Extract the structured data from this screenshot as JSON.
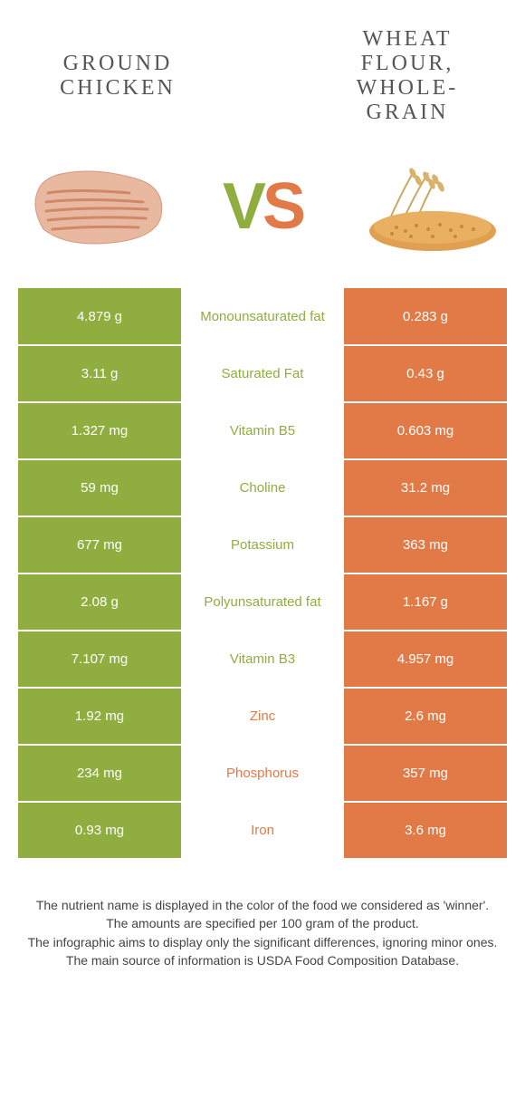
{
  "foods": {
    "left": {
      "title": "Ground chicken"
    },
    "right": {
      "title": "Wheat flour, whole-grain"
    }
  },
  "colors": {
    "left": "#8fae3f",
    "right": "#e17a47",
    "background": "#ffffff"
  },
  "vs": {
    "v": "V",
    "s": "S"
  },
  "rows": [
    {
      "left": "4.879 g",
      "label": "Monounsaturated fat",
      "winner": "left",
      "right": "0.283 g"
    },
    {
      "left": "3.11 g",
      "label": "Saturated Fat",
      "winner": "left",
      "right": "0.43 g"
    },
    {
      "left": "1.327 mg",
      "label": "Vitamin B5",
      "winner": "left",
      "right": "0.603 mg"
    },
    {
      "left": "59 mg",
      "label": "Choline",
      "winner": "left",
      "right": "31.2 mg"
    },
    {
      "left": "677 mg",
      "label": "Potassium",
      "winner": "left",
      "right": "363 mg"
    },
    {
      "left": "2.08 g",
      "label": "Polyunsaturated fat",
      "winner": "left",
      "right": "1.167 g"
    },
    {
      "left": "7.107 mg",
      "label": "Vitamin B3",
      "winner": "left",
      "right": "4.957 mg"
    },
    {
      "left": "1.92 mg",
      "label": "Zinc",
      "winner": "right",
      "right": "2.6 mg"
    },
    {
      "left": "234 mg",
      "label": "Phosphorus",
      "winner": "right",
      "right": "357 mg"
    },
    {
      "left": "0.93 mg",
      "label": "Iron",
      "winner": "right",
      "right": "3.6 mg"
    }
  ],
  "footer": {
    "line1": "The nutrient name is displayed in the color of the food we considered as 'winner'.",
    "line2": "The amounts are specified per 100 gram of the product.",
    "line3": "The infographic aims to display only the significant differences, ignoring minor ones.",
    "line4": "The main source of information is USDA Food Composition Database."
  }
}
